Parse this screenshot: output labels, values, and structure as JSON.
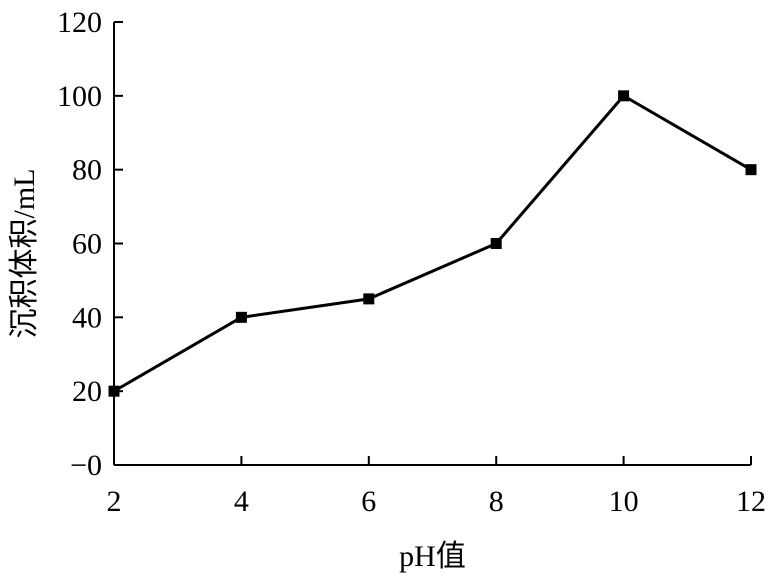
{
  "chart_data": {
    "type": "line",
    "x": [
      2,
      4,
      6,
      8,
      10,
      12
    ],
    "series": [
      {
        "values": [
          20,
          40,
          45,
          60,
          100,
          80
        ],
        "color": "#000000",
        "marker": "square"
      }
    ],
    "xlabel": "pH值",
    "ylabel": "沉积体积/mL",
    "xlim": [
      2,
      12
    ],
    "ylim": [
      0,
      120
    ],
    "xticks": [
      "2",
      "4",
      "6",
      "8",
      "10",
      "12"
    ],
    "yticks": [
      "−0",
      "20",
      "40",
      "60",
      "80",
      "100",
      "120"
    ],
    "ytick_values": [
      0,
      20,
      40,
      60,
      80,
      100,
      120
    ],
    "grid": false,
    "legend": "none"
  }
}
